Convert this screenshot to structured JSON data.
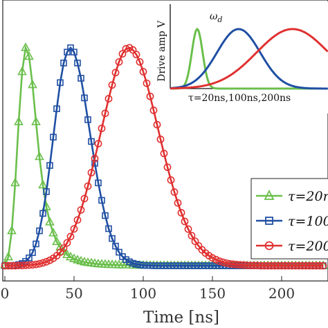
{
  "chart_data": [
    {
      "type": "line",
      "xlabel": "Time [ns]",
      "xlim": [
        0,
        230
      ],
      "ylim": [
        0,
        1.05
      ],
      "xticks": [
        0,
        50,
        100,
        150,
        200
      ],
      "tick_labels": [
        "0",
        "50",
        "100",
        "150",
        "200"
      ],
      "x": [
        0,
        2.5,
        5,
        7.5,
        10,
        12.5,
        15,
        17.5,
        20,
        22.5,
        25,
        27.5,
        30,
        32.5,
        35,
        37.5,
        40,
        42.5,
        45,
        47.5,
        50,
        52.5,
        55,
        57.5,
        60,
        62.5,
        65,
        67.5,
        70,
        72.5,
        75,
        77.5,
        80,
        82.5,
        85,
        87.5,
        90,
        92.5,
        95,
        97.5,
        100,
        102.5,
        105,
        107.5,
        110,
        112.5,
        115,
        117.5,
        120,
        122.5,
        125,
        127.5,
        130,
        132.5,
        135,
        137.5,
        140,
        142.5,
        145,
        147.5,
        150,
        152.5,
        155,
        157.5,
        160,
        162.5,
        165,
        167.5,
        170,
        172.5,
        175,
        177.5,
        180,
        182.5,
        185,
        187.5,
        190,
        192.5,
        195,
        197.5,
        200,
        202.5,
        205,
        207.5,
        210,
        212.5,
        215,
        217.5,
        220,
        222.5,
        225,
        227.5,
        230
      ],
      "series": [
        {
          "name": "τ=20ns",
          "color": "#6abf4b",
          "marker": "triangle",
          "values": [
            0.003,
            0.04,
            0.16,
            0.38,
            0.66,
            0.89,
            1,
            0.96,
            0.83,
            0.66,
            0.5,
            0.37,
            0.27,
            0.2,
            0.15,
            0.11,
            0.085,
            0.065,
            0.05,
            0.04,
            0.032,
            0.026,
            0.021,
            0.017,
            0.014,
            0.012,
            0.01,
            0.008,
            0.007,
            0.006,
            0.005,
            0.0045,
            0.004,
            0.0035,
            0.003,
            0.0027,
            0.0024,
            0.0021,
            0.0019,
            0.0017,
            0.0015,
            0.0013,
            0.0012,
            0.001,
            0.0009,
            0.0008,
            0.0007,
            0.0006,
            0.0005,
            0.0004,
            0.0003,
            0.0003,
            0.0002,
            0.0002,
            0.0002,
            0.0001,
            0.0001,
            0.0001,
            0.0001,
            0,
            0,
            0,
            0,
            0,
            0,
            0,
            0,
            0,
            0,
            0,
            0,
            0,
            0,
            0,
            0,
            0,
            0,
            0,
            0,
            0,
            0,
            0,
            0,
            0,
            0,
            0,
            0,
            0,
            0,
            0,
            0,
            0,
            0
          ]
        },
        {
          "name": "τ=100ns",
          "color": "#1f4fa3",
          "marker": "square",
          "values": [
            0,
            0,
            0.001,
            0.002,
            0.005,
            0.01,
            0.02,
            0.036,
            0.06,
            0.1,
            0.16,
            0.24,
            0.34,
            0.46,
            0.59,
            0.72,
            0.84,
            0.93,
            0.98,
            1,
            0.98,
            0.93,
            0.86,
            0.77,
            0.67,
            0.57,
            0.47,
            0.38,
            0.3,
            0.23,
            0.17,
            0.125,
            0.09,
            0.062,
            0.042,
            0.028,
            0.018,
            0.011,
            0.007,
            0.004,
            0.002,
            0.001,
            0.001,
            0,
            0,
            0,
            0,
            0,
            0,
            0,
            0,
            0,
            0,
            0,
            0,
            0,
            0,
            0,
            0,
            0,
            0,
            0,
            0,
            0,
            0,
            0,
            0,
            0,
            0,
            0,
            0,
            0,
            0,
            0,
            0,
            0,
            0,
            0,
            0,
            0,
            0,
            0,
            0,
            0,
            0,
            0,
            0,
            0,
            0,
            0,
            0,
            0,
            0
          ]
        },
        {
          "name": "τ=200ns",
          "color": "#e03030",
          "marker": "circle",
          "values": [
            0,
            0,
            0,
            0,
            0.001,
            0.001,
            0.002,
            0.003,
            0.004,
            0.006,
            0.009,
            0.013,
            0.018,
            0.025,
            0.034,
            0.046,
            0.062,
            0.081,
            0.105,
            0.134,
            0.169,
            0.21,
            0.256,
            0.308,
            0.365,
            0.427,
            0.492,
            0.56,
            0.63,
            0.699,
            0.766,
            0.829,
            0.886,
            0.935,
            0.972,
            0.995,
            1,
            0.99,
            0.969,
            0.935,
            0.89,
            0.837,
            0.777,
            0.713,
            0.647,
            0.58,
            0.515,
            0.452,
            0.393,
            0.338,
            0.288,
            0.243,
            0.203,
            0.168,
            0.138,
            0.112,
            0.091,
            0.073,
            0.058,
            0.046,
            0.036,
            0.028,
            0.021,
            0.016,
            0.012,
            0.009,
            0.007,
            0.005,
            0.004,
            0.003,
            0.002,
            0.001,
            0.001,
            0.001,
            0,
            0,
            0,
            0,
            0,
            0,
            0,
            0,
            0,
            0,
            0,
            0,
            0,
            0,
            0,
            0,
            0,
            0,
            0
          ]
        }
      ],
      "legend": {
        "placement": "bottom-right",
        "entries": [
          "τ=20n",
          "τ=100",
          "τ=200"
        ]
      }
    },
    {
      "type": "line",
      "inset": true,
      "ylabel": "Drive amp V",
      "annotation": "ω",
      "annotation_sub": "d",
      "caption": "τ=20ns,100ns,200ns",
      "series": [
        {
          "name": "τ=20ns",
          "color": "#6abf4b",
          "center": 0.15,
          "width": 0.03
        },
        {
          "name": "τ=100ns",
          "color": "#1f4fa3",
          "center": 0.38,
          "width": 0.12
        },
        {
          "name": "τ=200ns",
          "color": "#e03030",
          "center": 0.68,
          "width": 0.2
        }
      ]
    }
  ]
}
